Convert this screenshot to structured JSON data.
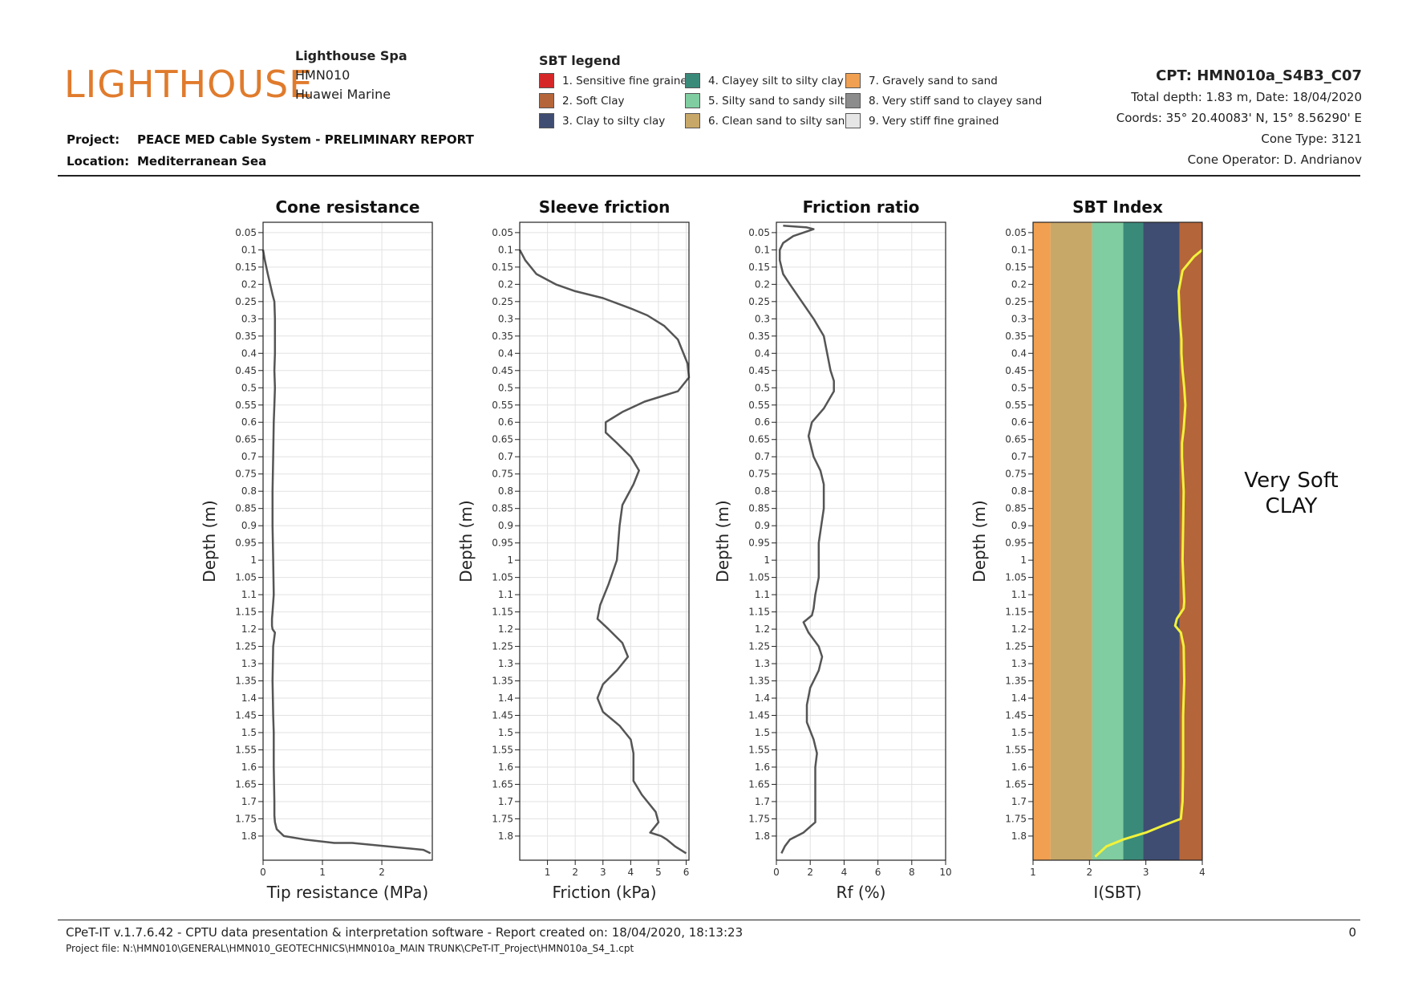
{
  "header": {
    "logo_text": "LIGHTHOUSE",
    "company_name": "Lighthouse Spa",
    "company_code": "HMN010",
    "client": "Huawei Marine",
    "project_label": "Project:",
    "project_value": "PEACE MED Cable System - PRELIMINARY REPORT",
    "location_label": "Location:",
    "location_value": "Mediterranean Sea"
  },
  "legend": {
    "title": "SBT legend",
    "items": [
      {
        "label": "1. Sensitive fine grained",
        "color": "#d62728"
      },
      {
        "label": "4. Clayey silt to silty clay",
        "color": "#3a8a7a"
      },
      {
        "label": "7. Gravely sand to sand",
        "color": "#f0a050"
      },
      {
        "label": "2. Soft Clay",
        "color": "#b5653a"
      },
      {
        "label": "5. Silty sand to sandy silt",
        "color": "#7fcda0"
      },
      {
        "label": "8. Very stiff sand to clayey sand",
        "color": "#8c8c8c"
      },
      {
        "label": "3. Clay to silty clay",
        "color": "#3f4d72"
      },
      {
        "label": "6. Clean sand to silty sand",
        "color": "#c8a868"
      },
      {
        "label": "9. Very stiff fine grained",
        "color": "#e6e6e6"
      }
    ]
  },
  "cpt": {
    "title": "CPT: HMN010a_S4B3_C07",
    "depth_date": "Total depth: 1.83 m, Date: 18/04/2020",
    "coords": "Coords: 35° 20.40083' N, 15° 8.56290' E",
    "cone_type": "Cone Type: 3121",
    "operator": "Cone Operator: D. Andrianov"
  },
  "interpretation": {
    "line1": "Very Soft",
    "line2": "CLAY"
  },
  "footer": {
    "software": "CPeT-IT v.1.7.6.42 - CPTU data presentation & interpretation software - Report created on: 18/04/2020, 18:13:23",
    "project_file": "Project file: N:\\HMN010\\GENERAL\\HMN010_GEOTECHNICS\\HMN010a_MAIN TRUNK\\CPeT-IT_Project\\HMN010a_S4_1.cpt",
    "page": "0"
  },
  "colors": {
    "curve": "#555555",
    "sbt_curve": "#f2f23a",
    "grid": "#e2e2e2"
  },
  "chart_data": [
    {
      "type": "line",
      "title": "Cone resistance",
      "xlabel": "Tip resistance (MPa)",
      "ylabel": "Depth (m)",
      "xlim": [
        0,
        2.85
      ],
      "ylim": [
        1.87,
        0.02
      ],
      "xticks": [
        0,
        1,
        2
      ],
      "yticks": [
        0.05,
        0.1,
        0.15,
        0.2,
        0.25,
        0.3,
        0.35,
        0.4,
        0.45,
        0.5,
        0.55,
        0.6,
        0.65,
        0.7,
        0.75,
        0.8,
        0.85,
        0.9,
        0.95,
        1,
        1.05,
        1.1,
        1.15,
        1.2,
        1.25,
        1.3,
        1.35,
        1.4,
        1.45,
        1.5,
        1.55,
        1.6,
        1.65,
        1.7,
        1.75,
        1.8
      ],
      "grid": true,
      "series": [
        {
          "x": [
            0.0,
            0.03,
            0.08,
            0.12,
            0.16,
            0.19,
            0.2,
            0.2,
            0.19,
            0.2,
            0.19,
            0.18,
            0.17,
            0.16,
            0.16,
            0.17,
            0.18,
            0.16,
            0.15,
            0.15,
            0.16,
            0.2,
            0.17,
            0.16,
            0.17,
            0.18,
            0.18,
            0.19,
            0.19,
            0.2,
            0.23,
            0.35,
            0.7,
            1.2,
            1.5,
            2.7,
            2.82
          ],
          "y": [
            0.1,
            0.13,
            0.17,
            0.2,
            0.23,
            0.25,
            0.3,
            0.4,
            0.45,
            0.5,
            0.55,
            0.6,
            0.7,
            0.8,
            0.9,
            1.0,
            1.1,
            1.15,
            1.17,
            1.19,
            1.2,
            1.21,
            1.25,
            1.35,
            1.45,
            1.5,
            1.6,
            1.7,
            1.74,
            1.76,
            1.78,
            1.8,
            1.81,
            1.82,
            1.82,
            1.84,
            1.85
          ]
        }
      ]
    },
    {
      "type": "line",
      "title": "Sleeve friction",
      "xlabel": "Friction (kPa)",
      "ylabel": "Depth (m)",
      "xlim": [
        0,
        6.1
      ],
      "ylim": [
        1.87,
        0.02
      ],
      "xticks": [
        1,
        2,
        3,
        4,
        5,
        6
      ],
      "yticks": [
        0.05,
        0.1,
        0.15,
        0.2,
        0.25,
        0.3,
        0.35,
        0.4,
        0.45,
        0.5,
        0.55,
        0.6,
        0.65,
        0.7,
        0.75,
        0.8,
        0.85,
        0.9,
        0.95,
        1,
        1.05,
        1.1,
        1.15,
        1.2,
        1.25,
        1.3,
        1.35,
        1.4,
        1.45,
        1.5,
        1.55,
        1.6,
        1.65,
        1.7,
        1.75,
        1.8
      ],
      "grid": true,
      "series": [
        {
          "x": [
            0.0,
            0.2,
            0.6,
            1.3,
            2.0,
            3.0,
            4.0,
            4.6,
            5.2,
            5.7,
            6.05,
            6.1,
            5.7,
            4.5,
            3.7,
            3.1,
            3.1,
            3.5,
            4.0,
            4.3,
            4.1,
            3.7,
            3.6,
            3.5,
            3.2,
            2.9,
            2.8,
            3.2,
            3.7,
            3.9,
            3.5,
            3.0,
            2.8,
            3.0,
            3.6,
            4.0,
            4.1,
            4.1,
            4.4,
            4.9,
            5.0,
            4.7,
            5.1,
            5.3,
            5.6,
            6.0
          ],
          "y": [
            0.1,
            0.13,
            0.17,
            0.2,
            0.22,
            0.24,
            0.27,
            0.29,
            0.32,
            0.36,
            0.43,
            0.47,
            0.51,
            0.54,
            0.57,
            0.6,
            0.63,
            0.66,
            0.7,
            0.74,
            0.78,
            0.84,
            0.9,
            1.0,
            1.07,
            1.13,
            1.17,
            1.2,
            1.24,
            1.28,
            1.32,
            1.36,
            1.4,
            1.44,
            1.48,
            1.52,
            1.56,
            1.64,
            1.68,
            1.73,
            1.76,
            1.79,
            1.8,
            1.81,
            1.83,
            1.85
          ]
        }
      ]
    },
    {
      "type": "line",
      "title": "Friction ratio",
      "xlabel": "Rf (%)",
      "ylabel": "Depth (m)",
      "xlim": [
        0,
        10
      ],
      "ylim": [
        1.87,
        0.02
      ],
      "xticks": [
        0,
        2,
        4,
        6,
        8,
        10
      ],
      "yticks": [
        0.05,
        0.1,
        0.15,
        0.2,
        0.25,
        0.3,
        0.35,
        0.4,
        0.45,
        0.5,
        0.55,
        0.6,
        0.65,
        0.7,
        0.75,
        0.8,
        0.85,
        0.9,
        0.95,
        1,
        1.05,
        1.1,
        1.15,
        1.2,
        1.25,
        1.3,
        1.35,
        1.4,
        1.45,
        1.5,
        1.55,
        1.6,
        1.65,
        1.7,
        1.75,
        1.8
      ],
      "grid": true,
      "series": [
        {
          "x": [
            0.4,
            1.8,
            2.2,
            1.0,
            0.4,
            0.2,
            0.2,
            0.4,
            0.8,
            1.5,
            2.2,
            2.8,
            3.0,
            3.2,
            3.4,
            3.4,
            2.8,
            2.1,
            1.9,
            2.2,
            2.6,
            2.8,
            2.8,
            2.5,
            2.5,
            2.3,
            2.2,
            2.1,
            1.6,
            1.9,
            2.5,
            2.7,
            2.5,
            2.0,
            1.8,
            1.8,
            2.2,
            2.4,
            2.3,
            2.3,
            2.3,
            2.3,
            1.6,
            0.8,
            0.5,
            0.3
          ],
          "y": [
            0.03,
            0.035,
            0.04,
            0.06,
            0.08,
            0.1,
            0.13,
            0.17,
            0.2,
            0.25,
            0.3,
            0.35,
            0.4,
            0.45,
            0.48,
            0.51,
            0.56,
            0.6,
            0.64,
            0.7,
            0.74,
            0.78,
            0.85,
            0.95,
            1.05,
            1.1,
            1.14,
            1.16,
            1.18,
            1.21,
            1.25,
            1.28,
            1.32,
            1.37,
            1.42,
            1.47,
            1.52,
            1.56,
            1.6,
            1.65,
            1.72,
            1.76,
            1.79,
            1.81,
            1.83,
            1.85
          ]
        }
      ]
    },
    {
      "type": "line",
      "title": "SBT Index",
      "xlabel": "I(SBT)",
      "ylabel": "Depth (m)",
      "xlim": [
        1,
        4
      ],
      "ylim": [
        1.87,
        0.02
      ],
      "xticks": [
        1,
        2,
        3,
        4
      ],
      "yticks": [
        0.05,
        0.1,
        0.15,
        0.2,
        0.25,
        0.3,
        0.35,
        0.4,
        0.45,
        0.5,
        0.55,
        0.6,
        0.65,
        0.7,
        0.75,
        0.8,
        0.85,
        0.9,
        0.95,
        1,
        1.05,
        1.1,
        1.15,
        1.2,
        1.25,
        1.3,
        1.35,
        1.4,
        1.45,
        1.5,
        1.55,
        1.6,
        1.65,
        1.7,
        1.75,
        1.8
      ],
      "grid": false,
      "zones": [
        {
          "from": 1.0,
          "to": 1.31,
          "color": "#f0a050"
        },
        {
          "from": 1.31,
          "to": 2.05,
          "color": "#c8a868"
        },
        {
          "from": 2.05,
          "to": 2.6,
          "color": "#7fcda0"
        },
        {
          "from": 2.6,
          "to": 2.95,
          "color": "#3a8a7a"
        },
        {
          "from": 2.95,
          "to": 3.6,
          "color": "#3f4d72"
        },
        {
          "from": 3.6,
          "to": 4.0,
          "color": "#b5653a"
        }
      ],
      "series": [
        {
          "x": [
            4.0,
            3.85,
            3.65,
            3.58,
            3.6,
            3.63,
            3.63,
            3.65,
            3.68,
            3.7,
            3.67,
            3.64,
            3.64,
            3.67,
            3.66,
            3.65,
            3.67,
            3.68,
            3.67,
            3.55,
            3.52,
            3.62,
            3.67,
            3.68,
            3.66,
            3.66,
            3.65,
            3.62,
            3.3,
            3.0,
            2.6,
            2.3,
            2.1
          ],
          "y": [
            0.1,
            0.12,
            0.16,
            0.22,
            0.3,
            0.36,
            0.4,
            0.45,
            0.5,
            0.55,
            0.62,
            0.66,
            0.7,
            0.8,
            0.9,
            1.0,
            1.08,
            1.12,
            1.14,
            1.17,
            1.19,
            1.21,
            1.25,
            1.35,
            1.45,
            1.6,
            1.7,
            1.75,
            1.77,
            1.79,
            1.81,
            1.83,
            1.86
          ]
        }
      ]
    }
  ]
}
